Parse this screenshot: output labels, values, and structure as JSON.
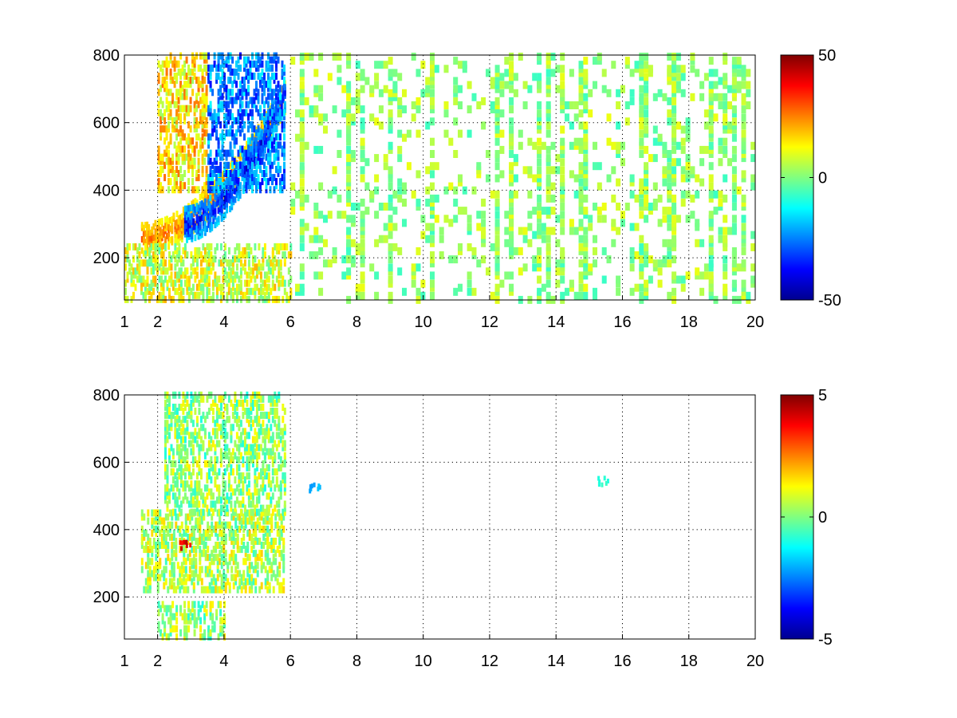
{
  "colormap": {
    "name": "jet",
    "stops": [
      "#00008f",
      "#0000ff",
      "#0080ff",
      "#00ffff",
      "#80ff80",
      "#ffff00",
      "#ff8000",
      "#ff0000",
      "#800000"
    ]
  },
  "chart_data": [
    {
      "type": "heatmap",
      "title": "",
      "xlabel": "",
      "ylabel": "",
      "xlim": [
        1,
        20
      ],
      "ylim": [
        75,
        800
      ],
      "xticks": [
        1,
        2,
        4,
        6,
        8,
        10,
        12,
        14,
        16,
        18,
        20
      ],
      "yticks": [
        200,
        400,
        600,
        800
      ],
      "grid": true,
      "colorbar": {
        "min": -50,
        "max": 50,
        "ticks": [
          50,
          0,
          -50
        ],
        "placement": "right"
      },
      "features": [
        {
          "kind": "band",
          "x": [
            1.5,
            5.8
          ],
          "y_start": 255,
          "y_curve": 0.35,
          "value": 30,
          "thickness": 45
        },
        {
          "kind": "band",
          "x": [
            2.8,
            5.8
          ],
          "y_start": 300,
          "y_curve": 0.35,
          "value": -42,
          "thickness": 50
        },
        {
          "kind": "region",
          "x": [
            2.0,
            3.5
          ],
          "y": [
            400,
            800
          ],
          "value": 15
        },
        {
          "kind": "region",
          "x": [
            3.5,
            5.8
          ],
          "y": [
            400,
            800
          ],
          "value": -25
        },
        {
          "kind": "region",
          "x": [
            1.0,
            6.0
          ],
          "y": [
            75,
            240
          ],
          "value": 8
        },
        {
          "kind": "scatter",
          "x": [
            6,
            20
          ],
          "y": [
            75,
            800
          ],
          "value": 2,
          "density": 0.12
        }
      ]
    },
    {
      "type": "heatmap",
      "title": "",
      "xlabel": "",
      "ylabel": "",
      "xlim": [
        1,
        20
      ],
      "ylim": [
        75,
        800
      ],
      "xticks": [
        1,
        2,
        4,
        6,
        8,
        10,
        12,
        14,
        16,
        18,
        20
      ],
      "yticks": [
        200,
        400,
        600,
        800
      ],
      "grid": true,
      "colorbar": {
        "min": -5,
        "max": 5,
        "ticks": [
          5,
          0,
          -5
        ],
        "placement": "right"
      },
      "features": [
        {
          "kind": "region",
          "x": [
            1.5,
            5.8
          ],
          "y": [
            220,
            450
          ],
          "value": 0.5
        },
        {
          "kind": "region",
          "x": [
            2.2,
            5.8
          ],
          "y": [
            450,
            800
          ],
          "value": 0.2
        },
        {
          "kind": "region",
          "x": [
            2.0,
            4.0
          ],
          "y": [
            80,
            180
          ],
          "value": 0.3
        },
        {
          "kind": "spot",
          "x": 2.8,
          "y": 360,
          "value": 4.5
        },
        {
          "kind": "spot",
          "x": 6.7,
          "y": 530,
          "value": -2.5
        },
        {
          "kind": "spot",
          "x": 15.4,
          "y": 550,
          "value": -1
        }
      ]
    }
  ]
}
